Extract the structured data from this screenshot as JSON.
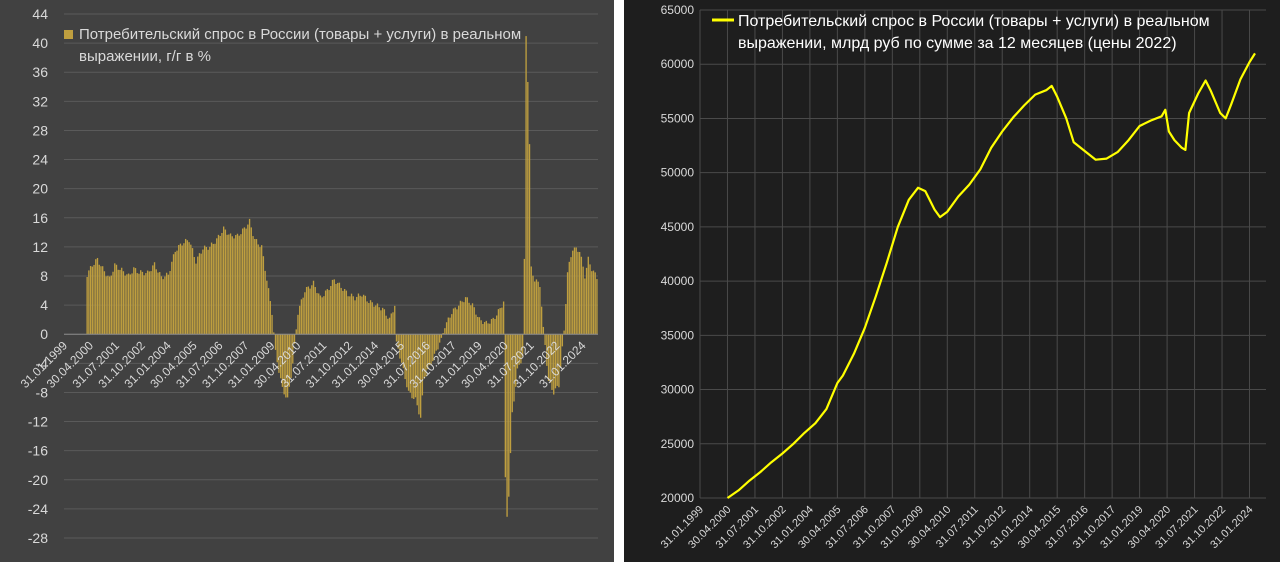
{
  "chart_data": [
    {
      "type": "bar",
      "legend": [
        "Потребительский спрос в России (товары + услуги) в реальном",
        "выражении, г/г в %"
      ],
      "series_name": "Потребительский спрос в России (товары + услуги) в реальном выражении, г/г в %",
      "color": "#bf9f3f",
      "background": "#414141",
      "ylim": [
        -28,
        44
      ],
      "yticks": [
        "44",
        "40",
        "36",
        "32",
        "28",
        "24",
        "20",
        "16",
        "12",
        "8",
        "4",
        "0",
        "-4",
        "-8",
        "-12",
        "-16",
        "-20",
        "-24",
        "-28"
      ],
      "xticks": [
        "31.01.1999",
        "30.04.2000",
        "31.07.2001",
        "31.10.2002",
        "31.01.2004",
        "30.04.2005",
        "31.07.2006",
        "31.10.2007",
        "31.01.2009",
        "30.04.2010",
        "31.07.2011",
        "31.10.2012",
        "31.01.2014",
        "30.04.2015",
        "31.07.2016",
        "31.10.2017",
        "31.01.2019",
        "30.04.2020",
        "31.07.2021",
        "31.10.2022",
        "31.01.2024"
      ],
      "legend_position": "top-left",
      "grid": true,
      "start": "1999-01",
      "end": "2024-09",
      "frequency": "monthly",
      "anchors": [
        [
          "1999-01",
          0
        ],
        [
          "2000-01",
          0
        ],
        [
          "2000-02",
          8.2
        ],
        [
          "2000-05",
          9.5
        ],
        [
          "2000-08",
          10.3
        ],
        [
          "2000-11",
          9.0
        ],
        [
          "2001-03",
          7.6
        ],
        [
          "2001-06",
          9.5
        ],
        [
          "2001-10",
          8.8
        ],
        [
          "2002-02",
          8.0
        ],
        [
          "2002-05",
          9.0
        ],
        [
          "2002-08",
          8.5
        ],
        [
          "2003-01",
          8.4
        ],
        [
          "2003-05",
          9.6
        ],
        [
          "2003-09",
          7.8
        ],
        [
          "2004-01",
          8.2
        ],
        [
          "2004-05",
          11.5
        ],
        [
          "2004-09",
          12.5
        ],
        [
          "2005-01",
          13.0
        ],
        [
          "2005-05",
          10.0
        ],
        [
          "2005-09",
          11.8
        ],
        [
          "2006-01",
          12.0
        ],
        [
          "2006-05",
          13.0
        ],
        [
          "2006-09",
          14.5
        ],
        [
          "2007-01",
          13.5
        ],
        [
          "2007-05",
          13.5
        ],
        [
          "2007-09",
          14.5
        ],
        [
          "2007-12",
          15.5
        ],
        [
          "2008-03",
          13.0
        ],
        [
          "2008-07",
          12.0
        ],
        [
          "2008-10",
          7.5
        ],
        [
          "2009-01",
          3.0
        ],
        [
          "2009-03",
          -2.5
        ],
        [
          "2009-07",
          -7.5
        ],
        [
          "2009-10",
          -9.0
        ],
        [
          "2010-01",
          -4.0
        ],
        [
          "2010-04",
          3.0
        ],
        [
          "2010-08",
          6.0
        ],
        [
          "2011-01",
          7.0
        ],
        [
          "2011-05",
          5.0
        ],
        [
          "2011-09",
          6.0
        ],
        [
          "2012-01",
          7.5
        ],
        [
          "2012-05",
          6.5
        ],
        [
          "2012-09",
          5.5
        ],
        [
          "2013-01",
          5.0
        ],
        [
          "2013-05",
          5.5
        ],
        [
          "2013-09",
          4.5
        ],
        [
          "2014-01",
          4.0
        ],
        [
          "2014-05",
          3.5
        ],
        [
          "2014-09",
          2.0
        ],
        [
          "2014-12",
          4.0
        ],
        [
          "2015-01",
          -1.0
        ],
        [
          "2015-04",
          -4.0
        ],
        [
          "2015-08",
          -8.0
        ],
        [
          "2015-12",
          -9.0
        ],
        [
          "2016-03",
          -11.5
        ],
        [
          "2016-05",
          -6.0
        ],
        [
          "2016-08",
          -4.5
        ],
        [
          "2016-11",
          -3.0
        ],
        [
          "2017-03",
          -0.5
        ],
        [
          "2017-06",
          1.5
        ],
        [
          "2017-09",
          3.0
        ],
        [
          "2018-01",
          4.0
        ],
        [
          "2018-05",
          5.0
        ],
        [
          "2018-09",
          4.0
        ],
        [
          "2019-01",
          2.0
        ],
        [
          "2019-05",
          1.5
        ],
        [
          "2019-09",
          2.0
        ],
        [
          "2020-01",
          3.5
        ],
        [
          "2020-03",
          4.5
        ],
        [
          "2020-04",
          -20.0
        ],
        [
          "2020-05",
          -25.0
        ],
        [
          "2020-06",
          -22.0
        ],
        [
          "2020-08",
          -11.0
        ],
        [
          "2020-11",
          -5.0
        ],
        [
          "2021-02",
          -3.0
        ],
        [
          "2021-03",
          10.0
        ],
        [
          "2021-04",
          41.0
        ],
        [
          "2021-05",
          35.0
        ],
        [
          "2021-06",
          26.0
        ],
        [
          "2021-07",
          9.0
        ],
        [
          "2021-09",
          7.5
        ],
        [
          "2021-12",
          6.8
        ],
        [
          "2022-02",
          1.0
        ],
        [
          "2022-05",
          -6.5
        ],
        [
          "2022-08",
          -8.0
        ],
        [
          "2022-11",
          -7.0
        ],
        [
          "2023-02",
          0.5
        ],
        [
          "2023-04",
          8.5
        ],
        [
          "2023-07",
          11.8
        ],
        [
          "2023-11",
          11.5
        ],
        [
          "2024-02",
          8.0
        ],
        [
          "2024-04",
          10.3
        ],
        [
          "2024-06",
          9.0
        ],
        [
          "2024-09",
          7.8
        ]
      ]
    },
    {
      "type": "line",
      "legend": [
        "Потребительский спрос в России (товары + услуги) в реальном",
        "выражении, млрд руб по сумме за 12 месяцев (цены 2022)"
      ],
      "series_name": "Потребительский спрос в России (товары + услуги) в реальном выражении, млрд руб по сумме за 12 месяцев (цены 2022)",
      "color": "#ffff00",
      "background": "#1e1e1e",
      "ylim": [
        20000,
        65000
      ],
      "yticks": [
        "65000",
        "60000",
        "55000",
        "50000",
        "45000",
        "40000",
        "35000",
        "30000",
        "25000",
        "20000"
      ],
      "xticks": [
        "31.01.1999",
        "30.04.2000",
        "31.07.2001",
        "31.10.2002",
        "31.01.2004",
        "30.04.2005",
        "31.07.2006",
        "31.10.2007",
        "31.01.2009",
        "30.04.2010",
        "31.07.2011",
        "31.10.2012",
        "31.01.2014",
        "30.04.2015",
        "31.07.2016",
        "31.10.2017",
        "31.01.2019",
        "30.04.2020",
        "31.07.2021",
        "31.10.2022",
        "31.01.2024"
      ],
      "legend_position": "top-right",
      "grid": true,
      "points": [
        [
          "2000-04",
          20000
        ],
        [
          "2000-10",
          20700
        ],
        [
          "2001-04",
          21600
        ],
        [
          "2001-10",
          22400
        ],
        [
          "2002-04",
          23300
        ],
        [
          "2002-10",
          24100
        ],
        [
          "2003-04",
          25000
        ],
        [
          "2003-10",
          26000
        ],
        [
          "2004-04",
          26900
        ],
        [
          "2004-10",
          28200
        ],
        [
          "2005-04",
          30600
        ],
        [
          "2005-07",
          31300
        ],
        [
          "2006-01",
          33300
        ],
        [
          "2006-07",
          35700
        ],
        [
          "2007-01",
          38600
        ],
        [
          "2007-07",
          41700
        ],
        [
          "2008-01",
          45000
        ],
        [
          "2008-07",
          47500
        ],
        [
          "2008-12",
          48600
        ],
        [
          "2009-04",
          48300
        ],
        [
          "2009-09",
          46600
        ],
        [
          "2009-12",
          45900
        ],
        [
          "2010-04",
          46400
        ],
        [
          "2010-10",
          47800
        ],
        [
          "2011-04",
          48900
        ],
        [
          "2011-10",
          50300
        ],
        [
          "2012-04",
          52300
        ],
        [
          "2012-10",
          53800
        ],
        [
          "2013-04",
          55100
        ],
        [
          "2013-10",
          56200
        ],
        [
          "2014-04",
          57200
        ],
        [
          "2014-10",
          57600
        ],
        [
          "2015-01",
          58000
        ],
        [
          "2015-04",
          57000
        ],
        [
          "2015-09",
          55000
        ],
        [
          "2016-01",
          52800
        ],
        [
          "2016-07",
          52000
        ],
        [
          "2017-01",
          51200
        ],
        [
          "2017-07",
          51300
        ],
        [
          "2018-01",
          51900
        ],
        [
          "2018-07",
          53000
        ],
        [
          "2019-01",
          54300
        ],
        [
          "2019-07",
          54800
        ],
        [
          "2020-01",
          55200
        ],
        [
          "2020-03",
          55800
        ],
        [
          "2020-05",
          53800
        ],
        [
          "2020-08",
          53000
        ],
        [
          "2020-12",
          52300
        ],
        [
          "2021-02",
          52100
        ],
        [
          "2021-04",
          55500
        ],
        [
          "2021-09",
          57300
        ],
        [
          "2022-01",
          58500
        ],
        [
          "2022-04",
          57500
        ],
        [
          "2022-09",
          55500
        ],
        [
          "2022-12",
          55000
        ],
        [
          "2023-03",
          56300
        ],
        [
          "2023-08",
          58600
        ],
        [
          "2024-01",
          60200
        ],
        [
          "2024-04",
          61000
        ]
      ]
    }
  ]
}
